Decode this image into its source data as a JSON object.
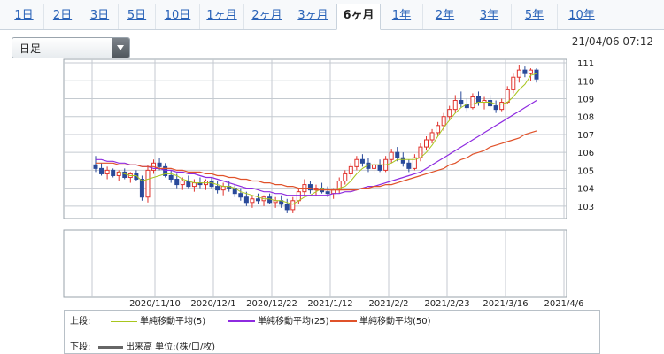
{
  "tabs": [
    {
      "label": "1日"
    },
    {
      "label": "2日"
    },
    {
      "label": "3日"
    },
    {
      "label": "5日"
    },
    {
      "label": "10日"
    },
    {
      "label": "1ヶ月"
    },
    {
      "label": "2ヶ月"
    },
    {
      "label": "3ヶ月"
    },
    {
      "label": "6ヶ月",
      "active": true
    },
    {
      "label": "1年"
    },
    {
      "label": "2年"
    },
    {
      "label": "3年"
    },
    {
      "label": "5年"
    },
    {
      "label": "10年"
    }
  ],
  "selector": {
    "value": "日足"
  },
  "timestamp": "21/04/06 07:12",
  "legend": {
    "upper_label": "上段:",
    "lower_label": "下段:",
    "items": [
      {
        "label": "単純移動平均(5)",
        "color": "#a8c61e"
      },
      {
        "label": "単純移動平均(25)",
        "color": "#8e2be0"
      },
      {
        "label": "単純移動平均(50)",
        "color": "#e0522a"
      }
    ],
    "volume_label": "出来高 単位:(株/口/枚)",
    "volume_color": "#666666"
  },
  "chart_data": {
    "type": "candlestick",
    "x_ticks": [
      "2020/11/10",
      "2020/12/1",
      "2020/12/22",
      "2021/1/12",
      "2021/2/2",
      "2021/2/23",
      "2021/3/16",
      "2021/4/6"
    ],
    "y_ticks": [
      103,
      104,
      105,
      106,
      107,
      108,
      109,
      110,
      111
    ],
    "ylim": [
      102.3,
      111.2
    ],
    "colors": {
      "up": "#ffffff",
      "down": "#2a4a9a",
      "up_border": "#e0332d",
      "down_border": "#2a4a9a"
    },
    "candles": [
      [
        105.3,
        105.8,
        104.9,
        105.1
      ],
      [
        105.1,
        105.4,
        104.7,
        104.8
      ],
      [
        104.8,
        105.2,
        104.5,
        105.0
      ],
      [
        105.0,
        105.1,
        104.6,
        104.7
      ],
      [
        104.7,
        105.0,
        104.4,
        104.9
      ],
      [
        104.9,
        105.1,
        104.5,
        104.6
      ],
      [
        104.6,
        104.9,
        104.3,
        104.8
      ],
      [
        104.8,
        105.0,
        104.4,
        104.5
      ],
      [
        104.5,
        104.7,
        103.3,
        103.5
      ],
      [
        103.5,
        105.3,
        103.2,
        105.0
      ],
      [
        105.0,
        105.6,
        104.8,
        105.4
      ],
      [
        105.4,
        105.7,
        105.0,
        105.2
      ],
      [
        105.2,
        105.4,
        104.6,
        104.7
      ],
      [
        104.7,
        105.0,
        104.3,
        104.5
      ],
      [
        104.5,
        104.8,
        104.0,
        104.2
      ],
      [
        104.2,
        104.6,
        103.9,
        104.4
      ],
      [
        104.4,
        104.7,
        104.0,
        104.1
      ],
      [
        104.1,
        104.5,
        103.8,
        104.3
      ],
      [
        104.3,
        104.6,
        104.0,
        104.2
      ],
      [
        104.2,
        104.5,
        103.9,
        104.4
      ],
      [
        104.4,
        104.6,
        104.0,
        104.1
      ],
      [
        104.1,
        104.4,
        103.7,
        103.9
      ],
      [
        103.9,
        104.3,
        103.6,
        104.1
      ],
      [
        104.1,
        104.4,
        103.8,
        104.0
      ],
      [
        104.0,
        104.2,
        103.5,
        103.7
      ],
      [
        103.7,
        104.0,
        103.3,
        103.5
      ],
      [
        103.5,
        103.8,
        103.0,
        103.2
      ],
      [
        103.2,
        103.6,
        102.9,
        103.4
      ],
      [
        103.4,
        103.7,
        103.1,
        103.3
      ],
      [
        103.3,
        103.6,
        103.0,
        103.5
      ],
      [
        103.5,
        103.7,
        103.1,
        103.2
      ],
      [
        103.2,
        103.5,
        102.9,
        103.3
      ],
      [
        103.3,
        103.6,
        102.9,
        103.1
      ],
      [
        103.1,
        103.4,
        102.6,
        102.8
      ],
      [
        102.8,
        103.5,
        102.6,
        103.3
      ],
      [
        103.3,
        104.0,
        103.1,
        103.8
      ],
      [
        103.8,
        104.5,
        103.6,
        104.2
      ],
      [
        104.2,
        104.4,
        103.7,
        103.9
      ],
      [
        103.9,
        104.2,
        103.6,
        104.0
      ],
      [
        104.0,
        104.3,
        103.7,
        103.8
      ],
      [
        103.8,
        104.1,
        103.5,
        103.7
      ],
      [
        103.7,
        104.0,
        103.4,
        103.9
      ],
      [
        103.9,
        104.6,
        103.7,
        104.4
      ],
      [
        104.4,
        105.0,
        104.2,
        104.8
      ],
      [
        104.8,
        105.4,
        104.6,
        105.2
      ],
      [
        105.2,
        105.8,
        105.0,
        105.6
      ],
      [
        105.6,
        105.9,
        105.2,
        105.4
      ],
      [
        105.4,
        105.7,
        104.9,
        105.1
      ],
      [
        105.1,
        105.5,
        104.8,
        105.3
      ],
      [
        105.3,
        105.6,
        104.9,
        105.0
      ],
      [
        105.0,
        105.8,
        104.9,
        105.6
      ],
      [
        105.6,
        106.2,
        105.4,
        106.0
      ],
      [
        106.0,
        106.3,
        105.5,
        105.7
      ],
      [
        105.7,
        106.0,
        105.2,
        105.4
      ],
      [
        105.4,
        105.6,
        104.9,
        105.1
      ],
      [
        105.1,
        105.9,
        105.0,
        105.7
      ],
      [
        105.7,
        106.5,
        105.5,
        106.3
      ],
      [
        106.3,
        106.9,
        106.1,
        106.7
      ],
      [
        106.7,
        107.3,
        106.5,
        107.1
      ],
      [
        107.1,
        107.7,
        106.9,
        107.5
      ],
      [
        107.5,
        108.2,
        107.2,
        108.0
      ],
      [
        108.0,
        108.6,
        107.8,
        108.4
      ],
      [
        108.4,
        109.2,
        108.2,
        108.9
      ],
      [
        108.9,
        109.4,
        108.5,
        108.7
      ],
      [
        108.7,
        109.0,
        108.3,
        108.5
      ],
      [
        108.5,
        109.3,
        108.4,
        109.1
      ],
      [
        109.1,
        109.4,
        108.6,
        108.8
      ],
      [
        108.8,
        109.1,
        108.4,
        108.9
      ],
      [
        108.9,
        109.2,
        108.5,
        108.6
      ],
      [
        108.6,
        108.9,
        108.2,
        108.4
      ],
      [
        108.4,
        109.0,
        108.3,
        108.8
      ],
      [
        108.8,
        109.7,
        108.7,
        109.5
      ],
      [
        109.5,
        110.4,
        109.3,
        110.2
      ],
      [
        110.2,
        110.9,
        109.9,
        110.6
      ],
      [
        110.6,
        110.8,
        110.2,
        110.4
      ],
      [
        110.4,
        110.7,
        110.0,
        110.6
      ],
      [
        110.6,
        110.7,
        109.9,
        110.1
      ]
    ],
    "series": [
      {
        "name": "単純移動平均(5)",
        "values": [
          null,
          null,
          null,
          null,
          104.9,
          104.8,
          104.7,
          104.7,
          104.4,
          104.5,
          104.6,
          104.7,
          104.8,
          104.8,
          104.7,
          104.5,
          104.4,
          104.3,
          104.3,
          104.3,
          104.3,
          104.2,
          104.1,
          104.1,
          104.0,
          103.8,
          103.7,
          103.6,
          103.5,
          103.4,
          103.4,
          103.3,
          103.3,
          103.2,
          103.1,
          103.3,
          103.5,
          103.6,
          103.8,
          104.0,
          103.9,
          103.9,
          104.0,
          104.1,
          104.4,
          104.8,
          105.1,
          105.3,
          105.3,
          105.3,
          105.3,
          105.4,
          105.6,
          105.6,
          105.6,
          105.6,
          105.7,
          106.0,
          106.4,
          106.9,
          107.4,
          107.8,
          108.2,
          108.5,
          108.7,
          108.7,
          108.8,
          108.8,
          108.8,
          108.7,
          108.7,
          108.8,
          109.1,
          109.5,
          109.8,
          110.3,
          110.4
        ]
      },
      {
        "name": "単純移動平均(25)",
        "values": [
          105.6,
          105.6,
          105.5,
          105.5,
          105.4,
          105.4,
          105.3,
          105.3,
          105.2,
          105.2,
          105.1,
          105.1,
          105.0,
          105.0,
          104.9,
          104.9,
          104.8,
          104.8,
          104.7,
          104.6,
          104.6,
          104.5,
          104.4,
          104.3,
          104.2,
          104.1,
          104.0,
          104.0,
          103.9,
          103.8,
          103.8,
          103.7,
          103.7,
          103.6,
          103.6,
          103.6,
          103.6,
          103.6,
          103.6,
          103.6,
          103.6,
          103.7,
          103.7,
          103.8,
          103.8,
          103.9,
          104.0,
          104.1,
          104.1,
          104.2,
          104.3,
          104.4,
          104.5,
          104.6,
          104.7,
          104.8,
          104.9,
          105.1,
          105.3,
          105.5,
          105.7,
          105.9,
          106.1,
          106.3,
          106.5,
          106.7,
          106.9,
          107.1,
          107.3,
          107.5,
          107.7,
          107.9,
          108.1,
          108.3,
          108.5,
          108.7,
          108.9
        ]
      },
      {
        "name": "単純移動平均(50)",
        "values": [
          105.4,
          105.4,
          105.4,
          105.4,
          105.3,
          105.3,
          105.3,
          105.3,
          105.2,
          105.2,
          105.2,
          105.1,
          105.1,
          105.1,
          105.0,
          105.0,
          104.9,
          104.9,
          104.9,
          104.8,
          104.8,
          104.7,
          104.7,
          104.6,
          104.6,
          104.5,
          104.5,
          104.4,
          104.4,
          104.3,
          104.3,
          104.2,
          104.2,
          104.1,
          104.1,
          104.0,
          104.0,
          104.0,
          103.9,
          103.9,
          103.9,
          103.9,
          103.9,
          103.9,
          103.9,
          103.9,
          104.0,
          104.0,
          104.1,
          104.1,
          104.2,
          104.2,
          104.3,
          104.4,
          104.5,
          104.6,
          104.7,
          104.8,
          104.9,
          105.0,
          105.1,
          105.3,
          105.4,
          105.6,
          105.7,
          105.9,
          106.0,
          106.1,
          106.3,
          106.4,
          106.5,
          106.6,
          106.7,
          106.8,
          107.0,
          107.1,
          107.2
        ]
      }
    ]
  }
}
